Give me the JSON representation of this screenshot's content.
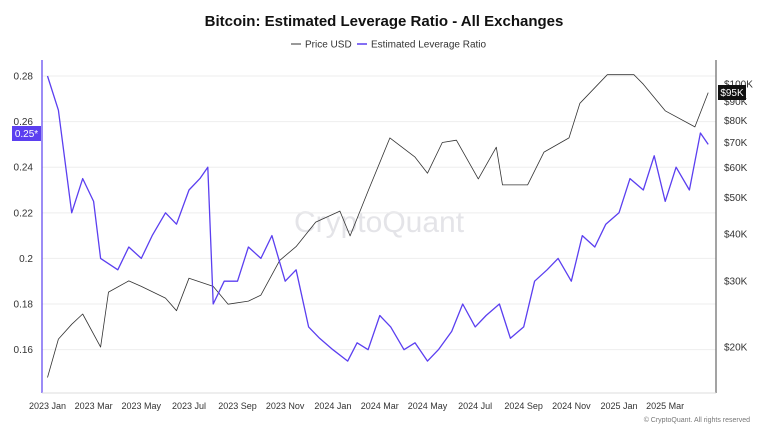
{
  "chart_data": {
    "type": "line",
    "title": "Bitcoin: Estimated Leverage Ratio - All Exchanges",
    "legend": {
      "placement": "top-center",
      "entries": [
        "Price USD",
        "Estimated Leverage Ratio"
      ]
    },
    "x_ticks": [
      "2023 Jan",
      "2023 Mar",
      "2023 May",
      "2023 Jul",
      "2023 Sep",
      "2023 Nov",
      "2024 Jan",
      "2024 Mar",
      "2024 May",
      "2024 Jul",
      "2024 Sep",
      "2024 Nov",
      "2025 Jan",
      "2025 Mar"
    ],
    "x_tick_dates": [
      "2023-01-01",
      "2023-03-01",
      "2023-05-01",
      "2023-07-01",
      "2023-09-01",
      "2023-11-01",
      "2024-01-01",
      "2024-03-01",
      "2024-05-01",
      "2024-07-01",
      "2024-09-01",
      "2024-11-01",
      "2025-01-01",
      "2025-03-01"
    ],
    "xlim": [
      "2022-12-25",
      "2025-05-05"
    ],
    "left_axis": {
      "ticks": [
        0.28,
        0.26,
        0.24,
        0.22,
        0.2,
        0.18,
        0.16
      ],
      "tick_labels": [
        "0.28",
        "0.26",
        "0.24",
        "0.22",
        "0.2",
        "0.18",
        "0.16"
      ],
      "ylim": [
        0.141,
        0.287
      ],
      "current_label": "0.25*"
    },
    "right_axis": {
      "scale": "log",
      "ticks": [
        100000,
        90000,
        80000,
        70000,
        60000,
        50000,
        40000,
        30000,
        20000
      ],
      "tick_labels": [
        "$100K",
        "$90K",
        "$80K",
        "$70K",
        "$60K",
        "$50K",
        "$40K",
        "$30K",
        "$20K"
      ],
      "ylim": [
        15100,
        116000
      ],
      "current_label": "$95K"
    },
    "grid": true,
    "series": [
      {
        "name": "Price USD",
        "axis": "right",
        "color": "#333333",
        "dates": [
          "2023-01-01",
          "2023-01-15",
          "2023-02-01",
          "2023-02-15",
          "2023-03-10",
          "2023-03-20",
          "2023-04-15",
          "2023-05-01",
          "2023-06-01",
          "2023-06-15",
          "2023-07-01",
          "2023-08-01",
          "2023-08-20",
          "2023-09-15",
          "2023-10-01",
          "2023-10-25",
          "2023-11-15",
          "2023-12-10",
          "2024-01-10",
          "2024-01-23",
          "2024-02-15",
          "2024-03-14",
          "2024-04-15",
          "2024-05-01",
          "2024-05-20",
          "2024-06-07",
          "2024-07-05",
          "2024-07-28",
          "2024-08-05",
          "2024-09-06",
          "2024-09-27",
          "2024-10-29",
          "2024-11-12",
          "2024-12-17",
          "2025-01-20",
          "2025-02-01",
          "2025-03-01",
          "2025-04-08",
          "2025-04-25"
        ],
        "values": [
          16600,
          21000,
          23000,
          24500,
          20000,
          28000,
          30000,
          29000,
          27000,
          25000,
          30500,
          29000,
          26000,
          26500,
          27500,
          34000,
          37000,
          43000,
          46000,
          39500,
          52000,
          72000,
          64000,
          58000,
          70000,
          71000,
          56000,
          68000,
          54000,
          54000,
          66000,
          72000,
          89000,
          106000,
          106000,
          100000,
          85000,
          77000,
          95000
        ]
      },
      {
        "name": "Estimated Leverage Ratio",
        "axis": "left",
        "color": "#5b3ff0",
        "dates": [
          "2023-01-01",
          "2023-01-15",
          "2023-02-01",
          "2023-02-15",
          "2023-03-01",
          "2023-03-10",
          "2023-04-01",
          "2023-04-15",
          "2023-05-01",
          "2023-05-15",
          "2023-06-01",
          "2023-06-15",
          "2023-07-01",
          "2023-07-15",
          "2023-07-25",
          "2023-08-01",
          "2023-08-15",
          "2023-09-01",
          "2023-09-15",
          "2023-10-01",
          "2023-10-15",
          "2023-11-01",
          "2023-11-15",
          "2023-12-01",
          "2023-12-15",
          "2024-01-01",
          "2024-01-20",
          "2024-02-01",
          "2024-02-15",
          "2024-03-01",
          "2024-03-15",
          "2024-04-01",
          "2024-04-15",
          "2024-05-01",
          "2024-05-15",
          "2024-06-01",
          "2024-06-15",
          "2024-07-01",
          "2024-07-15",
          "2024-08-01",
          "2024-08-15",
          "2024-09-01",
          "2024-09-15",
          "2024-10-01",
          "2024-10-15",
          "2024-11-01",
          "2024-11-15",
          "2024-12-01",
          "2024-12-15",
          "2025-01-01",
          "2025-01-15",
          "2025-02-01",
          "2025-02-15",
          "2025-03-01",
          "2025-03-15",
          "2025-04-01",
          "2025-04-15",
          "2025-04-25"
        ],
        "values": [
          0.28,
          0.265,
          0.22,
          0.235,
          0.225,
          0.2,
          0.195,
          0.205,
          0.2,
          0.21,
          0.22,
          0.215,
          0.23,
          0.235,
          0.24,
          0.18,
          0.19,
          0.19,
          0.205,
          0.2,
          0.21,
          0.19,
          0.195,
          0.17,
          0.165,
          0.16,
          0.155,
          0.163,
          0.16,
          0.175,
          0.17,
          0.16,
          0.163,
          0.155,
          0.16,
          0.168,
          0.18,
          0.17,
          0.175,
          0.18,
          0.165,
          0.17,
          0.19,
          0.195,
          0.2,
          0.19,
          0.21,
          0.205,
          0.215,
          0.22,
          0.235,
          0.23,
          0.245,
          0.225,
          0.24,
          0.23,
          0.255,
          0.25
        ]
      }
    ],
    "watermark": "CryptoQuant",
    "footer": "© CryptoQuant. All rights reserved"
  }
}
